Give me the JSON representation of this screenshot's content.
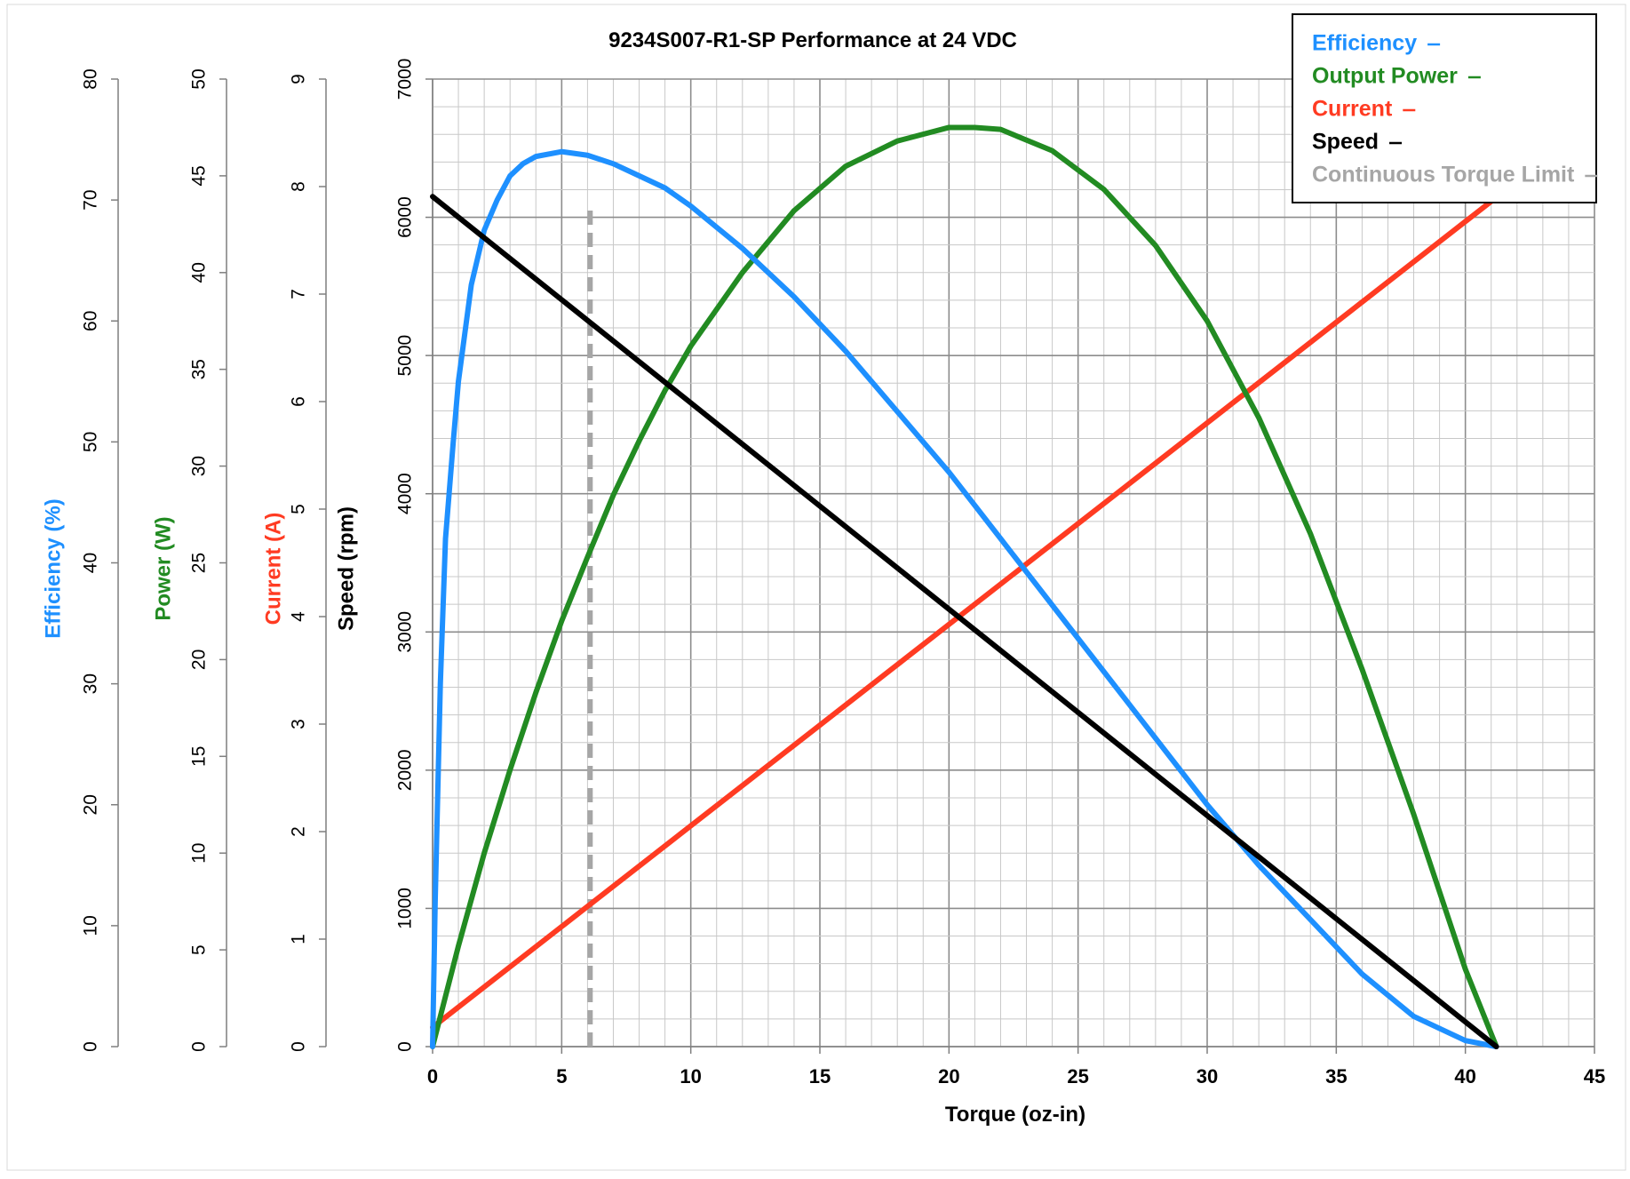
{
  "chart_data": {
    "type": "line",
    "title": "9234S007-R1-SP  Performance  at 24  VDC",
    "xlabel": "Torque (oz-in)",
    "xlim": [
      0,
      45
    ],
    "x_ticks": [
      "0",
      "5",
      "10",
      "15",
      "20",
      "25",
      "30",
      "35",
      "40",
      "45"
    ],
    "grid": true,
    "legend_position": "top-right",
    "axes": [
      {
        "key": "efficiency",
        "label": "Efficiency (%)",
        "color": "#1e90ff",
        "lim": [
          0,
          80
        ],
        "ticks": [
          "0",
          "10",
          "20",
          "30",
          "40",
          "50",
          "60",
          "70",
          "80"
        ]
      },
      {
        "key": "power",
        "label": "Power (W)",
        "color": "#228b22",
        "lim": [
          0,
          50
        ],
        "ticks": [
          "0",
          "5",
          "10",
          "15",
          "20",
          "25",
          "30",
          "35",
          "40",
          "45",
          "50"
        ]
      },
      {
        "key": "current",
        "label": "Current  (A)",
        "color": "#ff3b22",
        "lim": [
          0,
          9
        ],
        "ticks": [
          "0",
          "1",
          "2",
          "3",
          "4",
          "5",
          "6",
          "7",
          "8",
          "9"
        ]
      },
      {
        "key": "speed",
        "label": "Speed (rpm)",
        "color": "#000000",
        "lim": [
          0,
          7000
        ],
        "ticks": [
          "0",
          "1000",
          "2000",
          "3000",
          "4000",
          "5000",
          "6000",
          "7000"
        ]
      }
    ],
    "series": [
      {
        "name": "Efficiency",
        "axis": "efficiency",
        "color": "#1e90ff",
        "x": [
          0,
          0.1,
          0.3,
          0.5,
          0.8,
          1.0,
          1.5,
          2.0,
          2.5,
          3.0,
          3.5,
          4.0,
          5.0,
          6.0,
          7.0,
          8.0,
          9.0,
          10.0,
          12.0,
          14.0,
          16.0,
          18.0,
          20.0,
          22.0,
          24.0,
          26.0,
          28.0,
          30.0,
          32.0,
          34.0,
          36.0,
          38.0,
          40.0,
          41.2
        ],
        "y": [
          0,
          12,
          30,
          42,
          50,
          55,
          63,
          67.5,
          70,
          72,
          73,
          73.6,
          74,
          73.7,
          73,
          72,
          71,
          69.5,
          66,
          62,
          57.5,
          52.5,
          47.5,
          42,
          36.5,
          31,
          25.5,
          20,
          15,
          10.5,
          6,
          2.5,
          0.5,
          0
        ]
      },
      {
        "name": "Output Power",
        "axis": "power",
        "color": "#228b22",
        "x": [
          0,
          1,
          2,
          3,
          4,
          5,
          6,
          7,
          8,
          9,
          10,
          12,
          14,
          16,
          18,
          20,
          21,
          22,
          24,
          26,
          28,
          30,
          32,
          34,
          35,
          36,
          38,
          40,
          41.2
        ],
        "y": [
          0,
          5.2,
          10,
          14.3,
          18.3,
          22,
          25.3,
          28.5,
          31.3,
          33.9,
          36.2,
          40,
          43.2,
          45.5,
          46.8,
          47.5,
          47.5,
          47.4,
          46.3,
          44.3,
          41.4,
          37.5,
          32.5,
          26.5,
          23.0,
          19.5,
          12,
          4,
          0
        ]
      },
      {
        "name": "Current",
        "axis": "current",
        "color": "#ff3b22",
        "x": [
          0,
          41.2
        ],
        "y": [
          0.18,
          7.9
        ]
      },
      {
        "name": "Speed",
        "axis": "speed",
        "color": "#000000",
        "x": [
          0,
          41.2
        ],
        "y": [
          6150,
          0
        ]
      },
      {
        "name": "Continuous Torque Limit",
        "axis": "speed",
        "color": "#a6a6a6",
        "x": [
          6.1,
          6.1
        ],
        "y": [
          0,
          6100
        ]
      }
    ]
  }
}
